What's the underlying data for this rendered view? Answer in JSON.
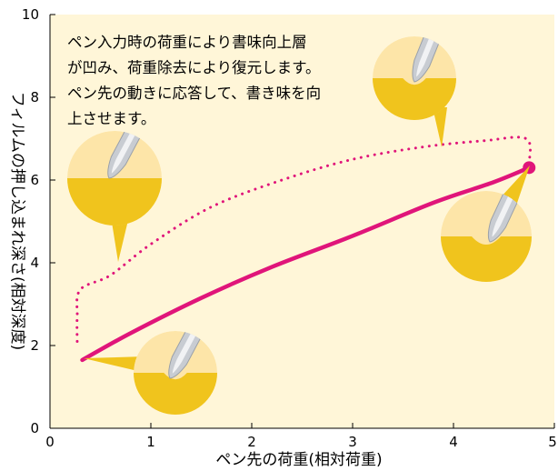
{
  "chart_data": {
    "type": "line",
    "xlabel": "ペン先の荷重(相対荷重)",
    "ylabel": "フィルムの押し込まれ深さ(相対深度)",
    "xlim": [
      0,
      5
    ],
    "ylim": [
      0,
      10
    ],
    "x_ticks": [
      "0",
      "1",
      "2",
      "3",
      "4",
      "5"
    ],
    "y_ticks": [
      "0",
      "2",
      "4",
      "6",
      "8",
      "10"
    ],
    "grid": false,
    "background_color": "#fff6d8",
    "series": [
      {
        "style": "solid",
        "color": "#e0157a",
        "x": [
          0.32,
          0.8,
          1.5,
          2.2,
          3.0,
          3.8,
          4.4,
          4.75
        ],
        "y": [
          1.65,
          2.3,
          3.15,
          3.9,
          4.65,
          5.45,
          5.95,
          6.3
        ],
        "end_marker": true
      },
      {
        "style": "dotted",
        "color": "#e0157a",
        "x": [
          0.27,
          0.27,
          0.3,
          0.6,
          1.0,
          1.6,
          2.3,
          3.0,
          3.7,
          4.3,
          4.72,
          4.75
        ],
        "y": [
          2.1,
          2.7,
          3.35,
          3.7,
          4.45,
          5.35,
          6.0,
          6.5,
          6.8,
          6.95,
          7.0,
          6.4
        ]
      }
    ],
    "annotation": [
      "ペン入力時の荷重により書味向上層",
      "が凹み、荷重除去により復元します。",
      "ペン先の動きに応答して、書き味を向",
      "上させます。"
    ],
    "illustration_colors": {
      "light": "#fde5a8",
      "dark": "#f0c41d",
      "pen": "#c8ccd2"
    }
  }
}
